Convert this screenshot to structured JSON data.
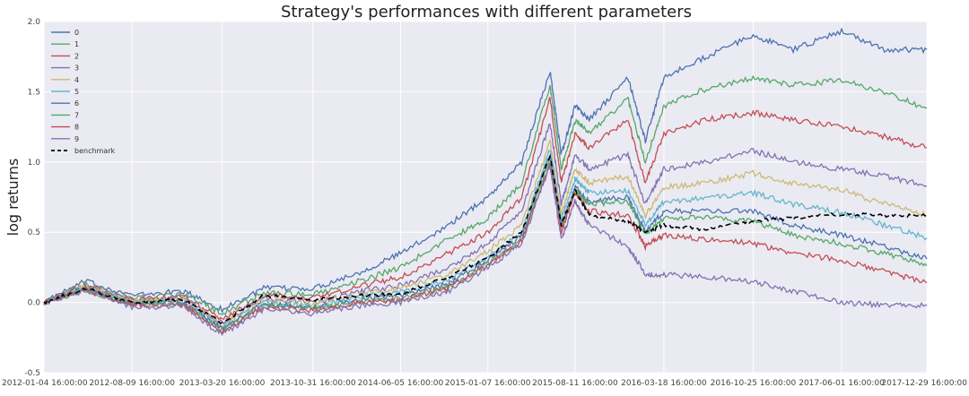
{
  "chart_data": {
    "type": "line",
    "title": "Strategy's performances with different parameters",
    "xlabel": "",
    "ylabel": "log returns",
    "ylim": [
      -0.5,
      2.0
    ],
    "yticks": [
      -0.5,
      0.0,
      0.5,
      1.0,
      1.5,
      2.0
    ],
    "ytick_labels": [
      "-0.5",
      "0.0",
      "0.5",
      "1.0",
      "1.5",
      "2.0"
    ],
    "xticks": [
      "2012-01-04 16:00:00",
      "2012-08-09 16:00:00",
      "2013-03-20 16:00:00",
      "2013-10-31 16:00:00",
      "2014-06-05 16:00:00",
      "2015-01-07 16:00:00",
      "2015-08-11 16:00:00",
      "2016-03-18 16:00:00",
      "2016-10-25 16:00:00",
      "2017-06-01 16:00:00",
      "2017-12-29 16:00:00"
    ],
    "grid": true,
    "legend_position": "top-left",
    "x": [
      "2012-01-04",
      "2012-04-15",
      "2012-08-09",
      "2012-12-15",
      "2013-03-20",
      "2013-07-01",
      "2013-10-31",
      "2014-03-01",
      "2014-06-05",
      "2014-10-01",
      "2015-01-07",
      "2015-04-01",
      "2015-06-10",
      "2015-07-08",
      "2015-08-11",
      "2015-09-15",
      "2015-12-20",
      "2016-02-01",
      "2016-03-18",
      "2016-07-01",
      "2016-10-25",
      "2017-02-01",
      "2017-06-01",
      "2017-09-15",
      "2017-12-29"
    ],
    "series": [
      {
        "name": "0",
        "color": "#4C72B0",
        "dash": "",
        "values": [
          0.0,
          0.15,
          0.05,
          0.08,
          -0.05,
          0.1,
          0.1,
          0.22,
          0.35,
          0.55,
          0.75,
          1.0,
          1.65,
          1.05,
          1.4,
          1.3,
          1.6,
          1.15,
          1.6,
          1.75,
          1.9,
          1.8,
          1.93,
          1.8,
          1.8
        ]
      },
      {
        "name": "1",
        "color": "#55A868",
        "dash": "",
        "values": [
          0.0,
          0.13,
          0.03,
          0.06,
          -0.08,
          0.07,
          0.06,
          0.16,
          0.25,
          0.45,
          0.6,
          0.85,
          1.55,
          0.95,
          1.3,
          1.2,
          1.45,
          1.0,
          1.4,
          1.52,
          1.6,
          1.55,
          1.58,
          1.5,
          1.38
        ]
      },
      {
        "name": "2",
        "color": "#C44E52",
        "dash": "",
        "values": [
          0.0,
          0.12,
          0.02,
          0.04,
          -0.12,
          0.05,
          0.03,
          0.12,
          0.18,
          0.35,
          0.5,
          0.75,
          1.45,
          0.85,
          1.2,
          1.1,
          1.3,
          0.85,
          1.2,
          1.3,
          1.35,
          1.3,
          1.25,
          1.18,
          1.1
        ]
      },
      {
        "name": "3",
        "color": "#8172B2",
        "dash": "",
        "values": [
          0.0,
          0.11,
          0.01,
          0.03,
          -0.15,
          0.03,
          0.0,
          0.08,
          0.12,
          0.25,
          0.42,
          0.65,
          1.28,
          0.7,
          1.05,
          0.95,
          1.05,
          0.7,
          0.95,
          1.0,
          1.08,
          1.0,
          0.95,
          0.9,
          0.83
        ]
      },
      {
        "name": "4",
        "color": "#CCB974",
        "dash": "",
        "values": [
          0.0,
          0.11,
          0.01,
          0.02,
          -0.16,
          0.02,
          -0.01,
          0.06,
          0.1,
          0.2,
          0.37,
          0.55,
          1.15,
          0.63,
          0.95,
          0.85,
          0.9,
          0.62,
          0.82,
          0.85,
          0.92,
          0.85,
          0.8,
          0.7,
          0.62
        ]
      },
      {
        "name": "5",
        "color": "#64B5CD",
        "dash": "",
        "values": [
          0.0,
          0.1,
          0.0,
          0.01,
          -0.18,
          0.0,
          -0.03,
          0.04,
          0.07,
          0.16,
          0.32,
          0.5,
          1.1,
          0.58,
          0.88,
          0.78,
          0.8,
          0.55,
          0.72,
          0.74,
          0.78,
          0.7,
          0.64,
          0.55,
          0.46
        ]
      },
      {
        "name": "6",
        "color": "#4C72B0",
        "dash": "",
        "values": [
          0.0,
          0.1,
          -0.01,
          0.0,
          -0.19,
          -0.01,
          -0.04,
          0.02,
          0.05,
          0.13,
          0.3,
          0.47,
          1.05,
          0.55,
          0.82,
          0.72,
          0.75,
          0.5,
          0.65,
          0.65,
          0.65,
          0.55,
          0.48,
          0.4,
          0.31
        ]
      },
      {
        "name": "7",
        "color": "#55A868",
        "dash": "",
        "values": [
          0.0,
          0.09,
          -0.01,
          -0.01,
          -0.2,
          -0.02,
          -0.05,
          0.01,
          0.03,
          0.11,
          0.28,
          0.45,
          1.02,
          0.53,
          0.8,
          0.7,
          0.72,
          0.48,
          0.6,
          0.6,
          0.58,
          0.48,
          0.42,
          0.35,
          0.26
        ]
      },
      {
        "name": "8",
        "color": "#C44E52",
        "dash": "",
        "values": [
          0.0,
          0.09,
          -0.02,
          -0.02,
          -0.21,
          -0.03,
          -0.06,
          0.0,
          0.02,
          0.1,
          0.27,
          0.44,
          1.0,
          0.5,
          0.78,
          0.65,
          0.62,
          0.4,
          0.48,
          0.45,
          0.42,
          0.35,
          0.3,
          0.22,
          0.14
        ]
      },
      {
        "name": "9",
        "color": "#8172B2",
        "dash": "",
        "values": [
          0.0,
          0.08,
          -0.03,
          -0.03,
          -0.23,
          -0.05,
          -0.08,
          -0.02,
          0.0,
          0.08,
          0.25,
          0.42,
          0.98,
          0.45,
          0.72,
          0.55,
          0.4,
          0.2,
          0.2,
          0.18,
          0.15,
          0.08,
          0.0,
          -0.02,
          -0.02
        ]
      },
      {
        "name": "benchmark",
        "color": "#000000",
        "dash": "6,4",
        "values": [
          0.0,
          0.1,
          0.0,
          0.02,
          -0.15,
          0.05,
          0.02,
          0.05,
          0.06,
          0.18,
          0.32,
          0.5,
          1.05,
          0.55,
          0.8,
          0.62,
          0.58,
          0.5,
          0.55,
          0.52,
          0.58,
          0.6,
          0.63,
          0.62,
          0.62
        ]
      }
    ]
  }
}
